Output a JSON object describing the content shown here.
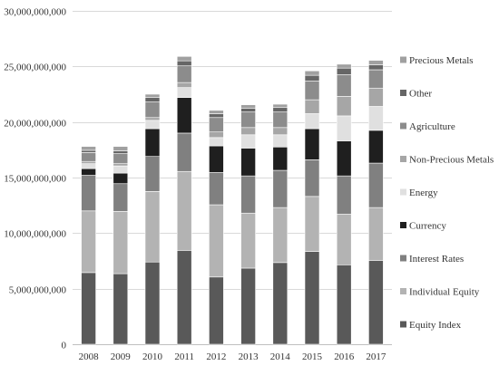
{
  "chart_data": {
    "type": "bar",
    "stacked": true,
    "categories": [
      "2008",
      "2009",
      "2010",
      "2011",
      "2012",
      "2013",
      "2014",
      "2015",
      "2016",
      "2017"
    ],
    "ylim": [
      0,
      30000000
    ],
    "yticks": [
      0,
      5000000,
      10000000,
      15000000,
      20000000,
      25000000,
      30000000
    ],
    "ytick_labels": [
      "0",
      "5,000,000,000",
      "10,000,000,000",
      "15,000,000,000",
      "20,000,000,000",
      "25,000,000,000",
      "30,000,000,000"
    ],
    "grid": true,
    "legend_position": "right",
    "series": [
      {
        "name": "Equity Index",
        "color": "#595959",
        "values": [
          6450000,
          6350000,
          7400000,
          8450000,
          6050000,
          6850000,
          7350000,
          8350000,
          7150000,
          7550000
        ]
      },
      {
        "name": "Individual Equity",
        "color": "#b3b3b3",
        "values": [
          5550000,
          5600000,
          6350000,
          7100000,
          6500000,
          4950000,
          4950000,
          4950000,
          4550000,
          4750000
        ]
      },
      {
        "name": "Interest Rates",
        "color": "#808080",
        "values": [
          3200000,
          2500000,
          3150000,
          3450000,
          2900000,
          3350000,
          3350000,
          3300000,
          3450000,
          4000000
        ]
      },
      {
        "name": "Currency",
        "color": "#1f1f1f",
        "values": [
          600000,
          950000,
          2500000,
          3200000,
          2400000,
          2500000,
          2100000,
          2800000,
          3150000,
          2950000
        ]
      },
      {
        "name": "Energy",
        "color": "#e0e0e0",
        "values": [
          450000,
          650000,
          750000,
          900000,
          750000,
          1200000,
          1100000,
          1350000,
          2250000,
          2150000
        ]
      },
      {
        "name": "Non-Precious Metals",
        "color": "#a6a6a6",
        "values": [
          200000,
          200000,
          250000,
          450000,
          500000,
          650000,
          650000,
          1250000,
          1750000,
          1650000
        ]
      },
      {
        "name": "Agriculture",
        "color": "#8c8c8c",
        "values": [
          800000,
          900000,
          1400000,
          1500000,
          1300000,
          1400000,
          1400000,
          1700000,
          1950000,
          1650000
        ]
      },
      {
        "name": "Other",
        "color": "#666666",
        "values": [
          200000,
          250000,
          400000,
          450000,
          350000,
          350000,
          400000,
          500000,
          600000,
          450000
        ]
      },
      {
        "name": "Precious Metals",
        "color": "#a0a0a0",
        "values": [
          350000,
          400000,
          300000,
          400000,
          300000,
          300000,
          300000,
          400000,
          350000,
          400000
        ]
      }
    ]
  }
}
